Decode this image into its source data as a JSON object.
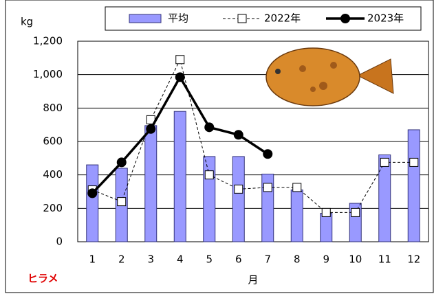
{
  "chart_data": {
    "type": "bar",
    "y_label": "kg",
    "x_label": "月",
    "annotation": "ヒラメ",
    "categories": [
      "1",
      "2",
      "3",
      "4",
      "5",
      "6",
      "7",
      "8",
      "9",
      "10",
      "11",
      "12"
    ],
    "series": [
      {
        "name": "平均",
        "mark": "bar",
        "color": "#9999ff",
        "values": [
          460,
          440,
          695,
          780,
          510,
          510,
          405,
          310,
          170,
          230,
          520,
          670
        ]
      },
      {
        "name": "2022年",
        "mark": "line",
        "marker": "square",
        "dash": true,
        "color": "#000000",
        "values": [
          310,
          240,
          730,
          1090,
          400,
          315,
          325,
          325,
          175,
          175,
          475,
          475
        ]
      },
      {
        "name": "2023年",
        "mark": "line",
        "marker": "circle",
        "dash": false,
        "color": "#000000",
        "values": [
          290,
          475,
          675,
          985,
          685,
          640,
          525,
          null,
          null,
          null,
          null,
          null
        ]
      }
    ],
    "ylim": [
      0,
      1200
    ],
    "yticks": [
      0,
      200,
      400,
      600,
      800,
      {
        "value": 1000,
        "label": "1,000"
      },
      {
        "value": 1200,
        "label": "1,200"
      }
    ],
    "grid": true,
    "legend": "top"
  }
}
